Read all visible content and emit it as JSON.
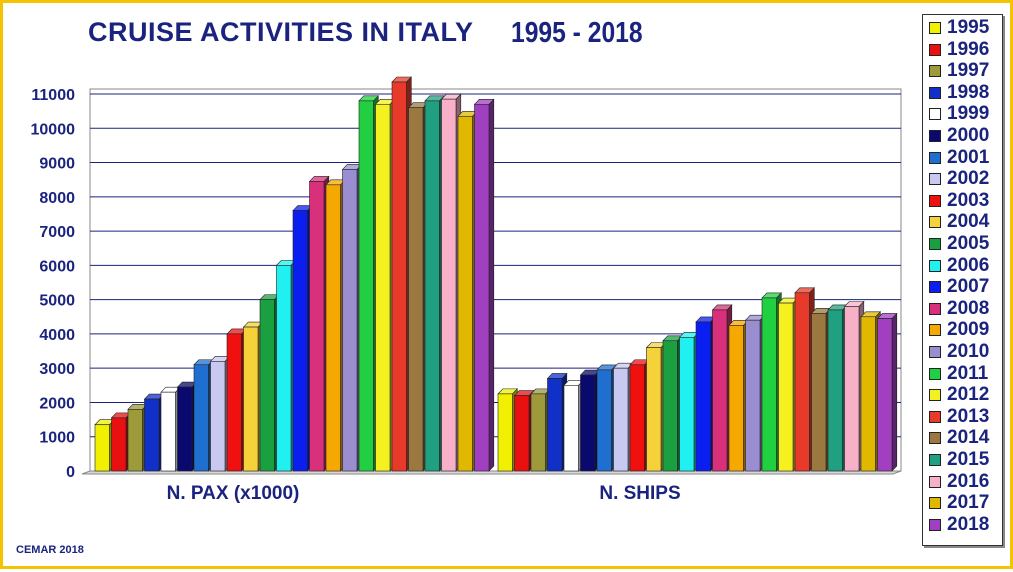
{
  "title": "CRUISE ACTIVITIES IN ITALY",
  "title_years": "1995 - 2018",
  "footer": "CEMAR 2018",
  "chart_data": {
    "type": "bar",
    "categories": [
      "N. PAX (x1000)",
      "N. SHIPS"
    ],
    "ylim": [
      0,
      11000
    ],
    "yticks": [
      0,
      1000,
      2000,
      3000,
      4000,
      5000,
      6000,
      7000,
      8000,
      9000,
      10000,
      11000
    ],
    "grid": true,
    "legend_position": "right",
    "series": [
      {
        "name": "1995",
        "color": "#f0f000",
        "values": [
          1350,
          2250
        ]
      },
      {
        "name": "1996",
        "color": "#e81010",
        "values": [
          1550,
          2200
        ]
      },
      {
        "name": "1997",
        "color": "#9c9a3a",
        "values": [
          1800,
          2250
        ]
      },
      {
        "name": "1998",
        "color": "#1030c8",
        "values": [
          2100,
          2700
        ]
      },
      {
        "name": "1999",
        "color": "#ffffff",
        "values": [
          2300,
          2500
        ]
      },
      {
        "name": "2000",
        "color": "#0a0a6e",
        "values": [
          2450,
          2800
        ]
      },
      {
        "name": "2001",
        "color": "#1f6fd0",
        "values": [
          3100,
          2950
        ]
      },
      {
        "name": "2002",
        "color": "#c8c8f0",
        "values": [
          3200,
          3000
        ]
      },
      {
        "name": "2003",
        "color": "#f01010",
        "values": [
          4000,
          3100
        ]
      },
      {
        "name": "2004",
        "color": "#f5d23a",
        "values": [
          4200,
          3600
        ]
      },
      {
        "name": "2005",
        "color": "#1aa040",
        "values": [
          5000,
          3800
        ]
      },
      {
        "name": "2006",
        "color": "#20f0f0",
        "values": [
          6000,
          3900
        ]
      },
      {
        "name": "2007",
        "color": "#0a1ef0",
        "values": [
          7600,
          4350
        ]
      },
      {
        "name": "2008",
        "color": "#d8307a",
        "values": [
          8450,
          4700
        ]
      },
      {
        "name": "2009",
        "color": "#f5a800",
        "values": [
          8350,
          4250
        ]
      },
      {
        "name": "2010",
        "color": "#9a8ed0",
        "values": [
          8800,
          4400
        ]
      },
      {
        "name": "2011",
        "color": "#20d040",
        "values": [
          10800,
          5050
        ]
      },
      {
        "name": "2012",
        "color": "#f5f020",
        "values": [
          10700,
          4900
        ]
      },
      {
        "name": "2013",
        "color": "#e83a2a",
        "values": [
          11350,
          5200
        ]
      },
      {
        "name": "2014",
        "color": "#9a7840",
        "values": [
          10600,
          4600
        ]
      },
      {
        "name": "2015",
        "color": "#20a080",
        "values": [
          10800,
          4700
        ]
      },
      {
        "name": "2016",
        "color": "#f8b0c8",
        "values": [
          10850,
          4800
        ]
      },
      {
        "name": "2017",
        "color": "#e0b800",
        "values": [
          10350,
          4500
        ]
      },
      {
        "name": "2018",
        "color": "#a040c0",
        "values": [
          10700,
          4450
        ]
      }
    ]
  }
}
